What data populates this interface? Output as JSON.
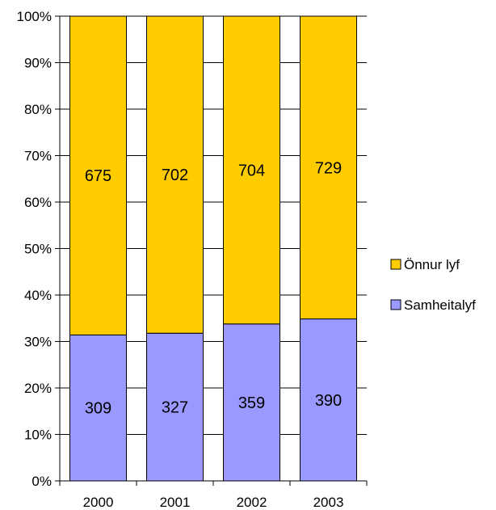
{
  "chart_data": {
    "type": "bar",
    "stacked": true,
    "normalized": true,
    "categories": [
      "2000",
      "2001",
      "2002",
      "2003"
    ],
    "series": [
      {
        "name": "Samheitalyf",
        "values": [
          309,
          327,
          359,
          390
        ],
        "color": "#9999ff"
      },
      {
        "name": "Önnur lyf",
        "values": [
          675,
          702,
          704,
          729
        ],
        "color": "#ffcc00"
      }
    ],
    "title": "",
    "xlabel": "",
    "ylabel": "",
    "ylim": [
      0,
      100
    ],
    "yticks": [
      "0%",
      "10%",
      "20%",
      "30%",
      "40%",
      "50%",
      "60%",
      "70%",
      "80%",
      "90%",
      "100%"
    ],
    "grid": true,
    "legend_position": "right"
  }
}
